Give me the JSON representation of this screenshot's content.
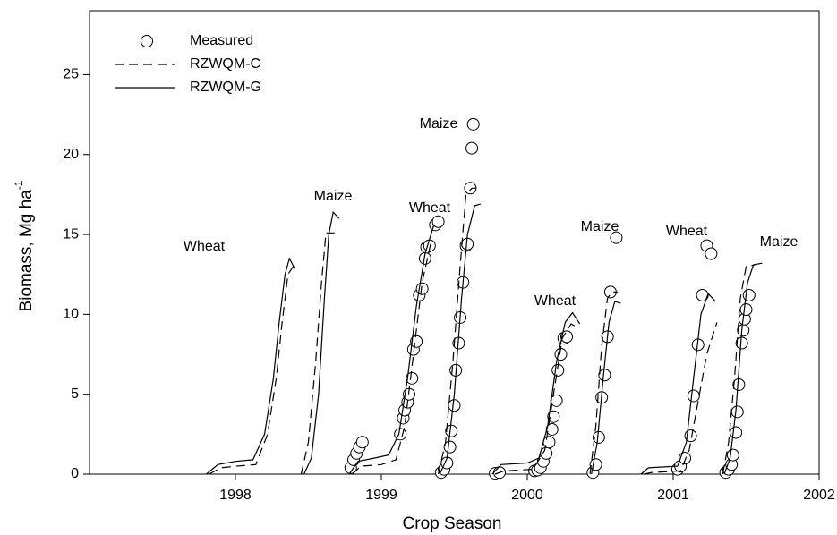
{
  "chart_data": {
    "type": "line",
    "xlabel": "Crop Season",
    "ylabel": "Biomass, Mg ha",
    "ylabel_superscript": "-1",
    "xlim": [
      1997,
      2002
    ],
    "xticks": [
      1998,
      1999,
      2000,
      2001,
      2002
    ],
    "ylim": [
      0,
      29
    ],
    "yticks": [
      0,
      5,
      10,
      15,
      20,
      25
    ],
    "grid": false,
    "legend": "upper left",
    "annotations": [
      "Wheat",
      "Maize",
      "Wheat",
      "Maize",
      "Wheat",
      "Maize",
      "Wheat",
      "Maize"
    ],
    "series": [
      {
        "name": "Measured",
        "mode": "markers",
        "color": "#000000",
        "x": [
          1998.79,
          1998.81,
          1998.83,
          1998.85,
          1998.87,
          1999.13,
          1999.15,
          1999.16,
          1999.18,
          1999.19,
          1999.21,
          1999.22,
          1999.24,
          1999.26,
          1999.28,
          1999.3,
          1999.31,
          1999.33,
          1999.37,
          1999.39,
          1999.41,
          1999.43,
          1999.45,
          1999.47,
          1999.48,
          1999.5,
          1999.51,
          1999.53,
          1999.54,
          1999.56,
          1999.58,
          1999.59,
          1999.61,
          1999.62,
          1999.63,
          1999.78,
          1999.81,
          2000.05,
          2000.07,
          2000.09,
          2000.11,
          2000.13,
          2000.15,
          2000.17,
          2000.18,
          2000.2,
          2000.21,
          2000.23,
          2000.25,
          2000.27,
          2000.45,
          2000.47,
          2000.49,
          2000.51,
          2000.53,
          2000.55,
          2000.57,
          2000.61,
          2001.03,
          2001.05,
          2001.08,
          2001.12,
          2001.14,
          2001.17,
          2001.2,
          2001.23,
          2001.26,
          2001.36,
          2001.38,
          2001.4,
          2001.41,
          2001.43,
          2001.44,
          2001.45,
          2001.47,
          2001.48,
          2001.49,
          2001.5,
          2001.52
        ],
        "values": [
          0.4,
          0.9,
          1.3,
          1.7,
          2.0,
          2.5,
          3.5,
          4,
          4.5,
          5,
          6,
          7.8,
          8.3,
          11.2,
          11.6,
          13.5,
          14.2,
          14.3,
          15.6,
          15.8,
          0.1,
          0.3,
          0.7,
          1.7,
          2.7,
          4.3,
          6.5,
          8.2,
          9.8,
          12,
          14.3,
          14.4,
          17.9,
          20.4,
          21.9,
          0.05,
          0.1,
          0.2,
          0.25,
          0.4,
          0.8,
          1.3,
          2.0,
          2.8,
          3.6,
          4.6,
          6.5,
          7.5,
          8.5,
          8.6,
          0.1,
          0.6,
          2.3,
          4.8,
          6.2,
          8.6,
          11.4,
          14.8,
          0.3,
          0.5,
          1.0,
          2.4,
          4.9,
          8.1,
          11.2,
          14.3,
          13.8,
          0.1,
          0.3,
          0.6,
          1.2,
          2.6,
          3.9,
          5.6,
          8.2,
          9.0,
          9.7,
          10.3,
          11.2
        ]
      },
      {
        "name": "RZWQM-C",
        "mode": "dashed",
        "color": "#000000",
        "x": [
          1997.82,
          1997.9,
          1998.0,
          1998.14,
          1998.22,
          1998.28,
          1998.32,
          1998.36,
          1998.41,
          null,
          1998.45,
          1998.5,
          1998.55,
          1998.59,
          1998.62,
          1998.68,
          null,
          1998.8,
          1998.86,
          1999.0,
          1999.1,
          1999.16,
          1999.22,
          1999.28,
          1999.34,
          null,
          1999.39,
          1999.44,
          1999.49,
          1999.54,
          1999.58,
          1999.62,
          1999.65,
          null,
          1999.78,
          1999.84,
          2000.04,
          2000.12,
          2000.18,
          2000.24,
          2000.3,
          2000.34,
          null,
          2000.43,
          2000.47,
          2000.51,
          2000.55,
          2000.58,
          2000.62,
          null,
          2000.8,
          2000.85,
          2001.05,
          2001.11,
          2001.17,
          2001.23,
          2001.3,
          null,
          2001.34,
          2001.38,
          2001.42,
          2001.46,
          2001.5,
          2001.56
        ],
        "values": [
          0,
          0.4,
          0.5,
          0.6,
          2.5,
          6,
          9.5,
          12.5,
          13.2,
          null,
          0,
          2,
          7,
          12,
          15.1,
          15.1,
          null,
          0,
          0.5,
          0.6,
          0.9,
          3,
          7.5,
          12,
          14.5,
          null,
          0,
          2,
          7,
          13,
          17.5,
          17.9,
          17.9,
          null,
          0,
          0.2,
          0.3,
          1.5,
          5,
          8.5,
          9.4,
          9.2,
          null,
          0,
          3,
          8,
          11,
          11.4,
          11.4,
          null,
          0,
          0.1,
          0.2,
          1.5,
          4.5,
          7.5,
          9.5,
          null,
          0,
          2,
          6,
          11,
          13,
          13.1
        ]
      },
      {
        "name": "RZWQM-G",
        "mode": "solid",
        "color": "#000000",
        "x": [
          1997.8,
          1997.88,
          1998.0,
          1998.12,
          1998.2,
          1998.26,
          1998.3,
          1998.34,
          1998.37,
          1998.41,
          null,
          1998.47,
          1998.52,
          1998.57,
          1998.61,
          1998.64,
          1998.67,
          1998.71,
          null,
          1998.78,
          1998.84,
          1998.95,
          1999.05,
          1999.12,
          1999.18,
          1999.24,
          1999.3,
          1999.36,
          null,
          1999.4,
          1999.45,
          1999.5,
          1999.55,
          1999.59,
          1999.64,
          1999.68,
          null,
          1999.76,
          1999.82,
          2000.0,
          2000.08,
          2000.14,
          2000.2,
          2000.26,
          2000.31,
          2000.36,
          null,
          2000.44,
          2000.48,
          2000.52,
          2000.56,
          2000.6,
          2000.64,
          null,
          2000.78,
          2000.83,
          2001.03,
          2001.09,
          2001.14,
          2001.19,
          2001.24,
          2001.29,
          null,
          2001.35,
          2001.39,
          2001.43,
          2001.47,
          2001.51,
          2001.55,
          2001.61
        ],
        "values": [
          0,
          0.6,
          0.8,
          0.9,
          2.5,
          6,
          9.5,
          12.5,
          13.5,
          12.8,
          null,
          0,
          1,
          5,
          11,
          15,
          16.4,
          16,
          null,
          0,
          0.8,
          1,
          1.2,
          2.5,
          6,
          10.5,
          13.8,
          15.6,
          null,
          0,
          1,
          5,
          11,
          15,
          16.8,
          16.9,
          null,
          0,
          0.6,
          0.7,
          1,
          3,
          7,
          9.5,
          10.1,
          9.4,
          null,
          0,
          2,
          6,
          9.5,
          10.8,
          10.7,
          null,
          0,
          0.4,
          0.5,
          2,
          6,
          10,
          11.3,
          10.8,
          null,
          0,
          1,
          4,
          9,
          12,
          13.1,
          13.2
        ]
      }
    ]
  }
}
